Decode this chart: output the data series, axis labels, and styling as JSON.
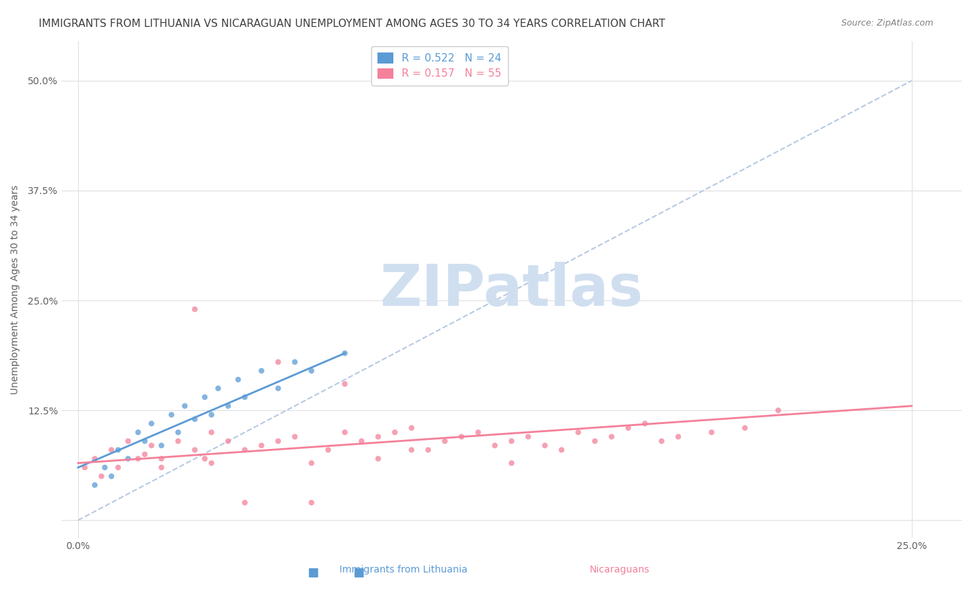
{
  "title": "IMMIGRANTS FROM LITHUANIA VS NICARAGUAN UNEMPLOYMENT AMONG AGES 30 TO 34 YEARS CORRELATION CHART",
  "source": "Source: ZipAtlas.com",
  "xlabel_ticks": [
    "0.0%",
    "25.0%"
  ],
  "ylabel_ticks": [
    "0%",
    "12.5%",
    "25.0%",
    "37.5%",
    "50.0%"
  ],
  "xlim": [
    -0.005,
    0.265
  ],
  "ylim": [
    -0.02,
    0.545
  ],
  "ylabel": "Unemployment Among Ages 30 to 34 years",
  "legend_entries": [
    {
      "label": "R = 0.522   N = 24",
      "color": "#a8c8f0"
    },
    {
      "label": "R = 0.157   N = 55",
      "color": "#f5a0b0"
    }
  ],
  "watermark": "ZIPatlas",
  "blue_scatter_x": [
    0.005,
    0.008,
    0.01,
    0.012,
    0.015,
    0.018,
    0.02,
    0.022,
    0.025,
    0.028,
    0.03,
    0.032,
    0.035,
    0.038,
    0.04,
    0.042,
    0.045,
    0.048,
    0.05,
    0.055,
    0.06,
    0.065,
    0.07,
    0.08
  ],
  "blue_scatter_y": [
    0.04,
    0.06,
    0.05,
    0.08,
    0.07,
    0.1,
    0.09,
    0.11,
    0.085,
    0.12,
    0.1,
    0.13,
    0.115,
    0.14,
    0.12,
    0.15,
    0.13,
    0.16,
    0.14,
    0.17,
    0.15,
    0.18,
    0.17,
    0.19
  ],
  "pink_scatter_x": [
    0.002,
    0.005,
    0.007,
    0.01,
    0.012,
    0.015,
    0.018,
    0.02,
    0.022,
    0.025,
    0.03,
    0.035,
    0.038,
    0.04,
    0.045,
    0.05,
    0.055,
    0.06,
    0.065,
    0.07,
    0.075,
    0.08,
    0.085,
    0.09,
    0.095,
    0.1,
    0.105,
    0.11,
    0.115,
    0.12,
    0.125,
    0.13,
    0.135,
    0.14,
    0.145,
    0.15,
    0.155,
    0.16,
    0.165,
    0.17,
    0.175,
    0.18,
    0.19,
    0.2,
    0.21,
    0.035,
    0.06,
    0.08,
    0.1,
    0.05,
    0.025,
    0.04,
    0.07,
    0.09,
    0.13
  ],
  "pink_scatter_y": [
    0.06,
    0.07,
    0.05,
    0.08,
    0.06,
    0.09,
    0.07,
    0.075,
    0.085,
    0.06,
    0.09,
    0.08,
    0.07,
    0.1,
    0.09,
    0.08,
    0.085,
    0.09,
    0.095,
    0.02,
    0.08,
    0.1,
    0.09,
    0.095,
    0.1,
    0.105,
    0.08,
    0.09,
    0.095,
    0.1,
    0.085,
    0.09,
    0.095,
    0.085,
    0.08,
    0.1,
    0.09,
    0.095,
    0.105,
    0.11,
    0.09,
    0.095,
    0.1,
    0.105,
    0.125,
    0.24,
    0.18,
    0.155,
    0.08,
    0.02,
    0.07,
    0.065,
    0.065,
    0.07,
    0.065
  ],
  "blue_trendline_x": [
    0.0,
    0.08
  ],
  "blue_trendline_y": [
    0.06,
    0.19
  ],
  "pink_trendline_x": [
    0.0,
    0.25
  ],
  "pink_trendline_y": [
    0.065,
    0.13
  ],
  "diag_line_x": [
    0.0,
    0.25
  ],
  "diag_line_y": [
    0.0,
    0.5
  ],
  "blue_color": "#5b9bd5",
  "pink_color": "#f4819a",
  "blue_trend_color": "#5b9bd5",
  "pink_trend_color": "#f4819a",
  "diag_color": "#b0c4de",
  "grid_color": "#e0e0e0",
  "title_color": "#404040",
  "source_color": "#808080",
  "watermark_color": "#d0dff0",
  "watermark_fontsize": 60,
  "title_fontsize": 11,
  "tick_fontsize": 10,
  "ylabel_fontsize": 10,
  "legend_fontsize": 11
}
